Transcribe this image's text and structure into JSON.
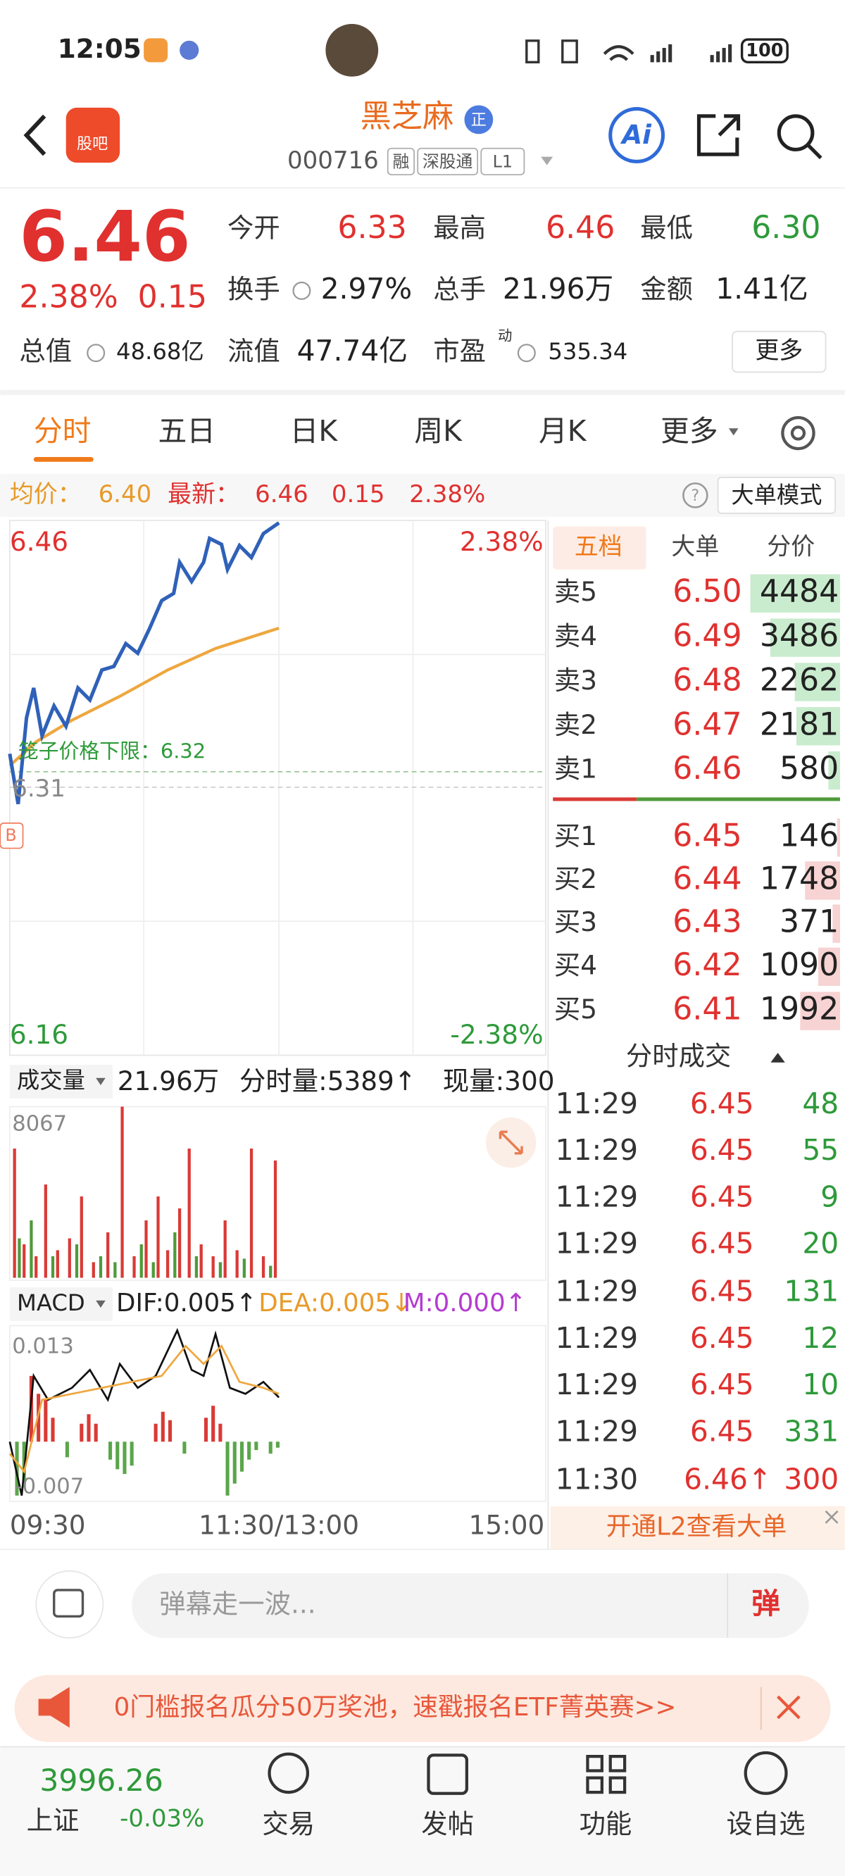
{
  "status_bar": {
    "time": "12:05",
    "battery": "100"
  },
  "header": {
    "badge": "股吧",
    "title": "黑芝麻",
    "title_badge": "正",
    "code": "000716",
    "tags": [
      "融",
      "深股通",
      "L1"
    ],
    "ai": "Ai"
  },
  "quote": {
    "price": "6.46",
    "change_pct": "2.38%",
    "change": "0.15",
    "fields": [
      {
        "label": "今开",
        "value": "6.33"
      },
      {
        "label": "最高",
        "value": "6.46"
      },
      {
        "label": "最低",
        "value": "6.30"
      },
      {
        "label": "换手",
        "value": "2.97%"
      },
      {
        "label": "总手",
        "value": "21.96万"
      },
      {
        "label": "金额",
        "value": "1.41亿"
      },
      {
        "label": "总值",
        "value": "48.68亿"
      },
      {
        "label": "流值",
        "value": "47.74亿"
      },
      {
        "label": "市盈",
        "sup": "动",
        "value": "535.34"
      }
    ],
    "more": "更多"
  },
  "tabs": [
    "分时",
    "五日",
    "日K",
    "周K",
    "月K",
    "更多"
  ],
  "info_bar": {
    "avg_label": "均价：",
    "avg": "6.40",
    "latest_label": "最新：",
    "latest": "6.46",
    "change": "0.15",
    "change_pct": "2.38%",
    "mode": "大单模式"
  },
  "chart": {
    "price_high": "6.46",
    "pct_high": "2.38%",
    "price_low": "6.16",
    "pct_low": "-2.38%",
    "limit_label": "笼子价格下限：6.32",
    "ref": "6.31",
    "b_marker": "B",
    "volume_label": "成交量",
    "volume_total": "21.96万",
    "tick_volume": "分时量:5389↑",
    "now_volume": "现量:300",
    "vol_max": "8067",
    "macd_label": "MACD",
    "dif": "DIF:0.005↑",
    "dea": "DEA:0.005↓",
    "m": "M:0.000↑",
    "macd_max": "0.013",
    "macd_min": "-0.007",
    "times": [
      "09:30",
      "11:30/13:00",
      "15:00"
    ]
  },
  "order_book": {
    "tabs": [
      "五档",
      "大单",
      "分价"
    ],
    "asks": [
      {
        "label": "卖5",
        "price": "6.50",
        "volume": 4484
      },
      {
        "label": "卖4",
        "price": "6.49",
        "volume": 3486
      },
      {
        "label": "卖3",
        "price": "6.48",
        "volume": 2262
      },
      {
        "label": "卖2",
        "price": "6.47",
        "volume": 2181
      },
      {
        "label": "卖1",
        "price": "6.46",
        "volume": 580
      }
    ],
    "bids": [
      {
        "label": "买1",
        "price": "6.45",
        "volume": 146
      },
      {
        "label": "买2",
        "price": "6.44",
        "volume": 1748
      },
      {
        "label": "买3",
        "price": "6.43",
        "volume": 371
      },
      {
        "label": "买4",
        "price": "6.42",
        "volume": 1090
      },
      {
        "label": "买5",
        "price": "6.41",
        "volume": 1992
      }
    ]
  },
  "trades": {
    "title": "分时成交",
    "rows": [
      {
        "time": "11:29",
        "price": "6.45",
        "volume": "48"
      },
      {
        "time": "11:29",
        "price": "6.45",
        "volume": "55"
      },
      {
        "time": "11:29",
        "price": "6.45",
        "volume": "9"
      },
      {
        "time": "11:29",
        "price": "6.45",
        "volume": "20"
      },
      {
        "time": "11:29",
        "price": "6.45",
        "volume": "131"
      },
      {
        "time": "11:29",
        "price": "6.45",
        "volume": "12"
      },
      {
        "time": "11:29",
        "price": "6.45",
        "volume": "10"
      },
      {
        "time": "11:29",
        "price": "6.45",
        "volume": "331"
      },
      {
        "time": "11:30",
        "price": "6.46↑",
        "volume": "300"
      }
    ]
  },
  "l2_banner": "开通L2查看大单",
  "comment": {
    "placeholder": "弹幕走一波...",
    "button": "弹"
  },
  "promo": "0门槛报名瓜分50万奖池，速戳报名ETF菁英赛>>",
  "bottom_nav": {
    "index_value": "3996.26",
    "index_name": "上证",
    "index_change": "-0.03%",
    "items": [
      "交易",
      "发帖",
      "功能",
      "设自选"
    ]
  }
}
